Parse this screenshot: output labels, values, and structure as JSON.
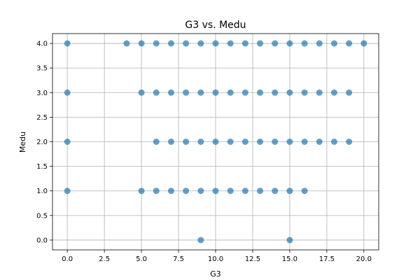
{
  "chart_data": {
    "type": "scatter",
    "title": "G3 vs. Medu",
    "xlabel": "G3",
    "ylabel": "Medu",
    "xlim": [
      -1,
      21
    ],
    "ylim": [
      -0.2,
      4.2
    ],
    "x_ticks": [
      "0.0",
      "2.5",
      "5.0",
      "7.5",
      "10.0",
      "12.5",
      "15.0",
      "17.5",
      "20.0"
    ],
    "y_ticks": [
      "0.0",
      "0.5",
      "1.0",
      "1.5",
      "2.0",
      "2.5",
      "3.0",
      "3.5",
      "4.0"
    ],
    "grid": true,
    "marker_color": "#1f77b4",
    "marker_alpha": 0.7,
    "points": [
      {
        "x": 0,
        "y": 4
      },
      {
        "x": 4,
        "y": 4
      },
      {
        "x": 5,
        "y": 4
      },
      {
        "x": 6,
        "y": 4
      },
      {
        "x": 7,
        "y": 4
      },
      {
        "x": 8,
        "y": 4
      },
      {
        "x": 9,
        "y": 4
      },
      {
        "x": 10,
        "y": 4
      },
      {
        "x": 11,
        "y": 4
      },
      {
        "x": 12,
        "y": 4
      },
      {
        "x": 13,
        "y": 4
      },
      {
        "x": 14,
        "y": 4
      },
      {
        "x": 15,
        "y": 4
      },
      {
        "x": 16,
        "y": 4
      },
      {
        "x": 17,
        "y": 4
      },
      {
        "x": 18,
        "y": 4
      },
      {
        "x": 19,
        "y": 4
      },
      {
        "x": 20,
        "y": 4
      },
      {
        "x": 0,
        "y": 3
      },
      {
        "x": 5,
        "y": 3
      },
      {
        "x": 6,
        "y": 3
      },
      {
        "x": 7,
        "y": 3
      },
      {
        "x": 8,
        "y": 3
      },
      {
        "x": 9,
        "y": 3
      },
      {
        "x": 10,
        "y": 3
      },
      {
        "x": 11,
        "y": 3
      },
      {
        "x": 12,
        "y": 3
      },
      {
        "x": 13,
        "y": 3
      },
      {
        "x": 14,
        "y": 3
      },
      {
        "x": 15,
        "y": 3
      },
      {
        "x": 16,
        "y": 3
      },
      {
        "x": 17,
        "y": 3
      },
      {
        "x": 18,
        "y": 3
      },
      {
        "x": 19,
        "y": 3
      },
      {
        "x": 0,
        "y": 2
      },
      {
        "x": 6,
        "y": 2
      },
      {
        "x": 7,
        "y": 2
      },
      {
        "x": 8,
        "y": 2
      },
      {
        "x": 9,
        "y": 2
      },
      {
        "x": 10,
        "y": 2
      },
      {
        "x": 11,
        "y": 2
      },
      {
        "x": 12,
        "y": 2
      },
      {
        "x": 13,
        "y": 2
      },
      {
        "x": 14,
        "y": 2
      },
      {
        "x": 15,
        "y": 2
      },
      {
        "x": 16,
        "y": 2
      },
      {
        "x": 17,
        "y": 2
      },
      {
        "x": 18,
        "y": 2
      },
      {
        "x": 19,
        "y": 2
      },
      {
        "x": 0,
        "y": 1
      },
      {
        "x": 5,
        "y": 1
      },
      {
        "x": 6,
        "y": 1
      },
      {
        "x": 7,
        "y": 1
      },
      {
        "x": 8,
        "y": 1
      },
      {
        "x": 9,
        "y": 1
      },
      {
        "x": 10,
        "y": 1
      },
      {
        "x": 11,
        "y": 1
      },
      {
        "x": 12,
        "y": 1
      },
      {
        "x": 13,
        "y": 1
      },
      {
        "x": 14,
        "y": 1
      },
      {
        "x": 15,
        "y": 1
      },
      {
        "x": 16,
        "y": 1
      },
      {
        "x": 9,
        "y": 0
      },
      {
        "x": 15,
        "y": 0
      }
    ]
  }
}
